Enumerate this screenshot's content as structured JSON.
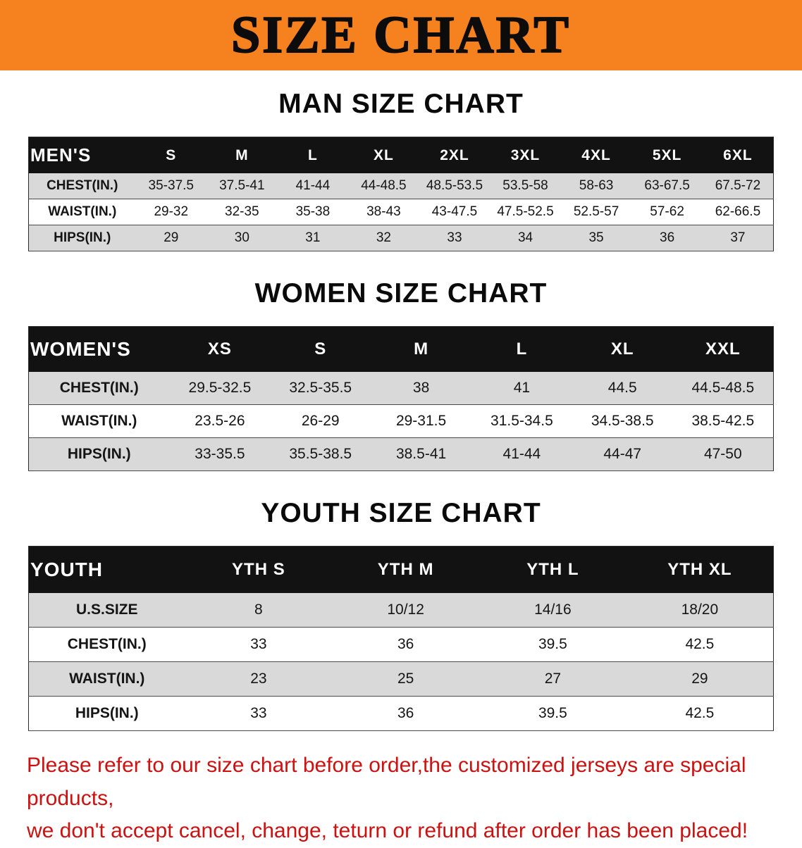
{
  "banner": {
    "title": "SIZE CHART"
  },
  "colors": {
    "banner_bg": "#f5821f",
    "header_bg": "#121212",
    "row_alt_bg": "#d9d9d9",
    "disclaimer_color": "#cc1111"
  },
  "sections": [
    {
      "heading": "MAN SIZE CHART",
      "label": "MEN'S",
      "columns": [
        "S",
        "M",
        "L",
        "XL",
        "2XL",
        "3XL",
        "4XL",
        "5XL",
        "6XL"
      ],
      "rows": [
        {
          "label": "CHEST(IN.)",
          "values": [
            "35-37.5",
            "37.5-41",
            "41-44",
            "44-48.5",
            "48.5-53.5",
            "53.5-58",
            "58-63",
            "63-67.5",
            "67.5-72"
          ]
        },
        {
          "label": "WAIST(IN.)",
          "values": [
            "29-32",
            "32-35",
            "35-38",
            "38-43",
            "43-47.5",
            "47.5-52.5",
            "52.5-57",
            "57-62",
            "62-66.5"
          ]
        },
        {
          "label": "HIPS(IN.)",
          "values": [
            "29",
            "30",
            "31",
            "32",
            "33",
            "34",
            "35",
            "36",
            "37"
          ]
        }
      ]
    },
    {
      "heading": "WOMEN SIZE CHART",
      "label": "WOMEN'S",
      "columns": [
        "XS",
        "S",
        "M",
        "L",
        "XL",
        "XXL"
      ],
      "rows": [
        {
          "label": "CHEST(IN.)",
          "values": [
            "29.5-32.5",
            "32.5-35.5",
            "38",
            "41",
            "44.5",
            "44.5-48.5"
          ]
        },
        {
          "label": "WAIST(IN.)",
          "values": [
            "23.5-26",
            "26-29",
            "29-31.5",
            "31.5-34.5",
            "34.5-38.5",
            "38.5-42.5"
          ]
        },
        {
          "label": "HIPS(IN.)",
          "values": [
            "33-35.5",
            "35.5-38.5",
            "38.5-41",
            "41-44",
            "44-47",
            "47-50"
          ]
        }
      ]
    },
    {
      "heading": "YOUTH SIZE CHART",
      "label": "YOUTH",
      "columns": [
        "YTH S",
        "YTH M",
        "YTH L",
        "YTH XL"
      ],
      "rows": [
        {
          "label": "U.S.SIZE",
          "values": [
            "8",
            "10/12",
            "14/16",
            "18/20"
          ]
        },
        {
          "label": "CHEST(IN.)",
          "values": [
            "33",
            "36",
            "39.5",
            "42.5"
          ]
        },
        {
          "label": "WAIST(IN.)",
          "values": [
            "23",
            "25",
            "27",
            "29"
          ]
        },
        {
          "label": "HIPS(IN.)",
          "values": [
            "33",
            "36",
            "39.5",
            "42.5"
          ]
        }
      ]
    }
  ],
  "disclaimer": {
    "line1": "Please refer to our size chart before order,the customized jerseys are special products,",
    "line2": "we don't accept cancel, change, teturn or refund after order has been placed!"
  }
}
